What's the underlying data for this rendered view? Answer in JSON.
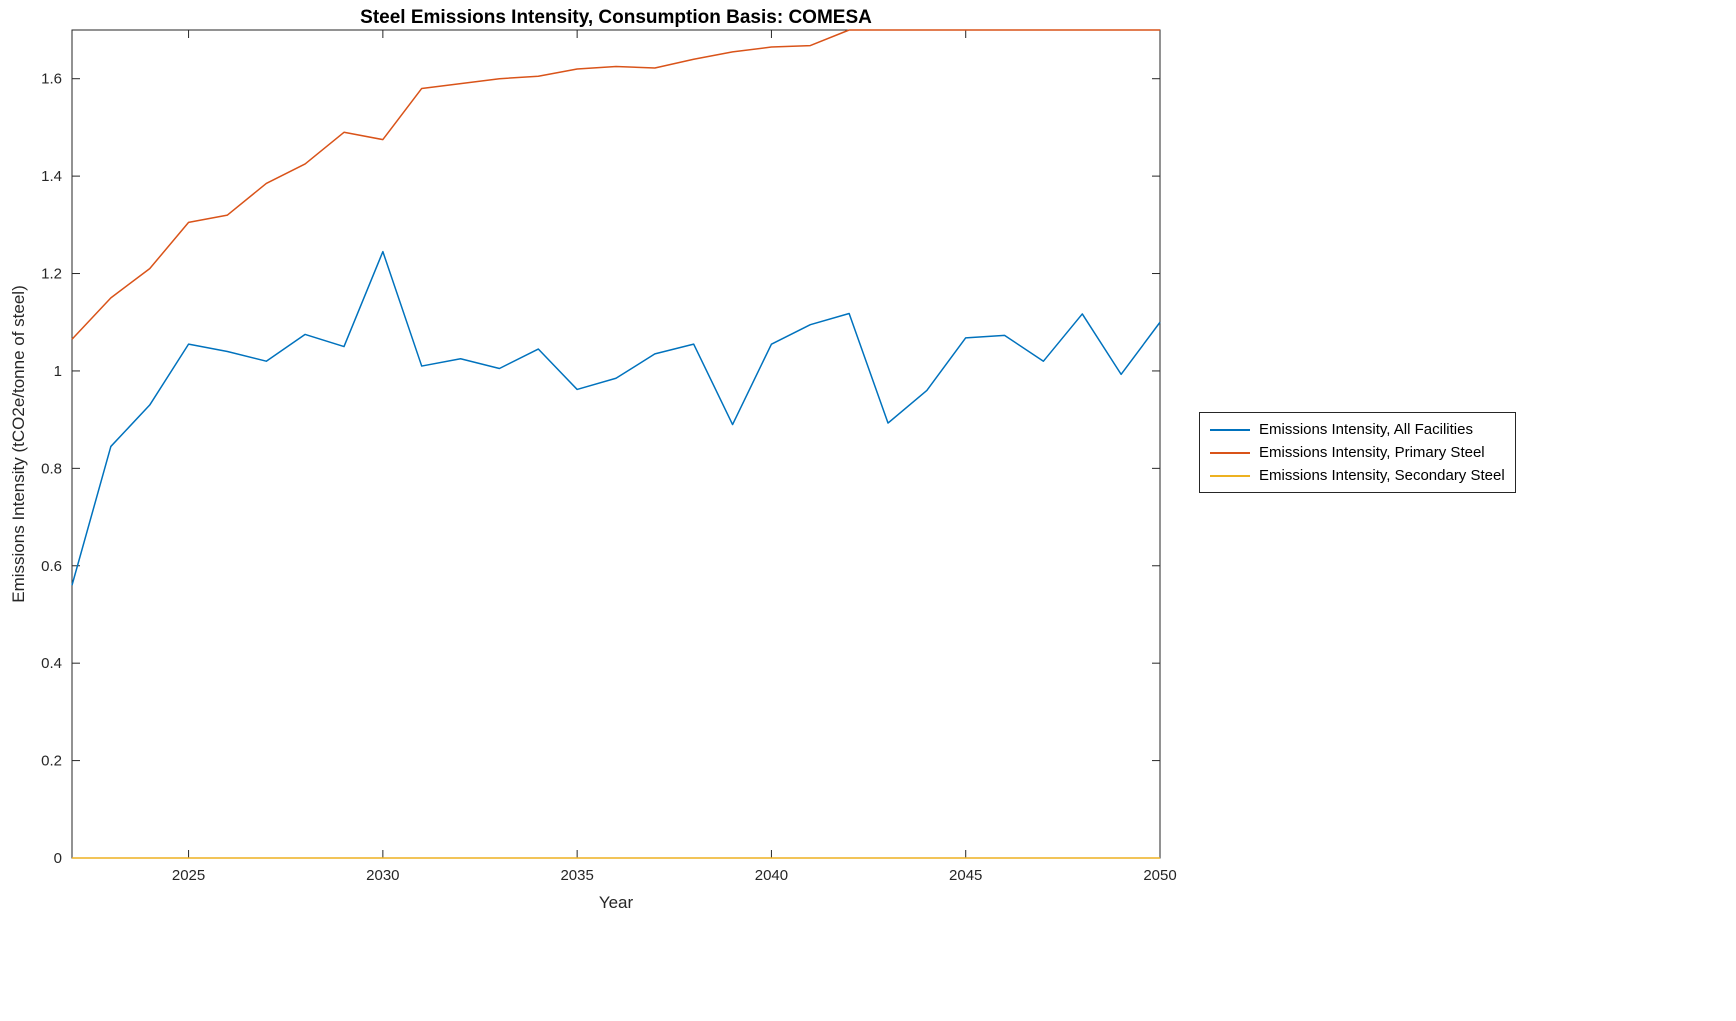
{
  "chart_data": {
    "type": "line",
    "title": "Steel Emissions Intensity, Consumption Basis: COMESA",
    "xlabel": "Year",
    "ylabel": "Emissions Intensity (tCO2e/tonne of steel)",
    "xlim": [
      2022,
      2050
    ],
    "ylim": [
      0,
      1.7
    ],
    "xticks": [
      2025,
      2030,
      2035,
      2040,
      2045,
      2050
    ],
    "yticks": [
      0,
      0.2,
      0.4,
      0.6,
      0.8,
      1,
      1.2,
      1.4,
      1.6
    ],
    "grid": false,
    "legend_position": "right-outside",
    "x": [
      2022,
      2023,
      2024,
      2025,
      2026,
      2027,
      2028,
      2029,
      2030,
      2031,
      2032,
      2033,
      2034,
      2035,
      2036,
      2037,
      2038,
      2039,
      2040,
      2041,
      2042,
      2043,
      2044,
      2045,
      2046,
      2047,
      2048,
      2049,
      2050
    ],
    "series": [
      {
        "name": "Emissions Intensity, All Facilities",
        "color": "#0072BD",
        "values": [
          0.56,
          0.845,
          0.93,
          1.055,
          1.04,
          1.02,
          1.075,
          1.05,
          1.245,
          1.01,
          1.025,
          1.005,
          1.045,
          0.962,
          0.985,
          1.035,
          1.055,
          0.89,
          1.055,
          1.095,
          1.118,
          0.893,
          0.96,
          1.068,
          1.073,
          1.02,
          1.117,
          0.993,
          1.1
        ]
      },
      {
        "name": "Emissions Intensity, Primary Steel",
        "color": "#D95319",
        "values": [
          1.065,
          1.15,
          1.21,
          1.305,
          1.32,
          1.385,
          1.425,
          1.49,
          1.475,
          1.58,
          1.59,
          1.6,
          1.605,
          1.62,
          1.625,
          1.622,
          1.64,
          1.655,
          1.665,
          1.668,
          1.7,
          1.7,
          1.7,
          1.7,
          1.7,
          1.7,
          1.7,
          1.7,
          1.7
        ]
      },
      {
        "name": "Emissions Intensity, Secondary Steel",
        "color": "#EDB120",
        "values": [
          0,
          0,
          0,
          0,
          0,
          0,
          0,
          0,
          0,
          0,
          0,
          0,
          0,
          0,
          0,
          0,
          0,
          0,
          0,
          0,
          0,
          0,
          0,
          0,
          0,
          0,
          0,
          0,
          0
        ]
      }
    ]
  }
}
